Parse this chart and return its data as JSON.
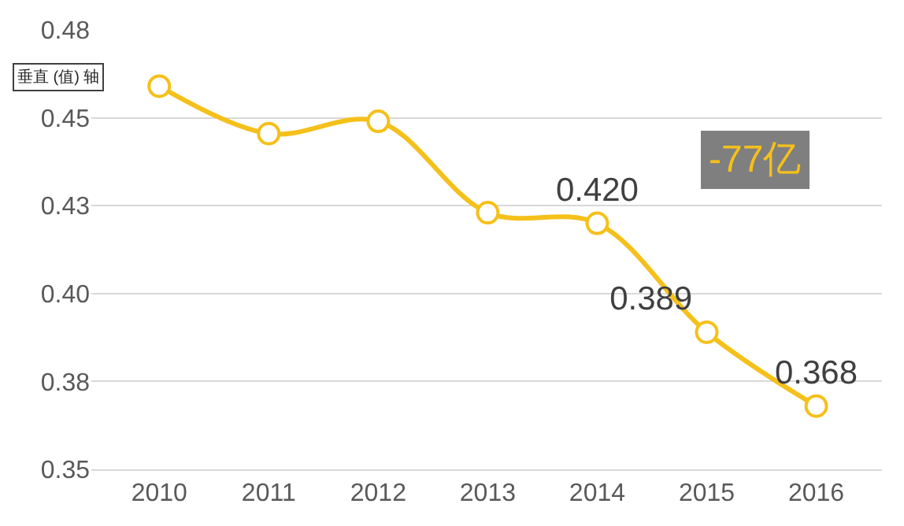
{
  "chart_data": {
    "type": "line",
    "categories": [
      "2010",
      "2011",
      "2012",
      "2013",
      "2014",
      "2015",
      "2016"
    ],
    "series": [
      {
        "color": "#f5c01a",
        "values": [
          0.459,
          0.4455,
          0.449,
          0.423,
          0.42,
          0.389,
          0.368
        ],
        "value_labels": [
          null,
          null,
          null,
          null,
          "0.420",
          "0.389",
          "0.368"
        ]
      }
    ],
    "ylim": [
      0.35,
      0.475
    ],
    "yticks": [
      {
        "value": 0.35,
        "label": "0.35"
      },
      {
        "value": 0.375,
        "label": "0.38"
      },
      {
        "value": 0.4,
        "label": "0.40"
      },
      {
        "value": 0.425,
        "label": "0.43"
      },
      {
        "value": 0.45,
        "label": "0.45"
      },
      {
        "value": 0.475,
        "label": "0.48"
      }
    ],
    "grid": "y",
    "marker": "circle",
    "line_style": "solid",
    "annotations": [
      "垂直 (值) 轴",
      "-77亿"
    ]
  }
}
